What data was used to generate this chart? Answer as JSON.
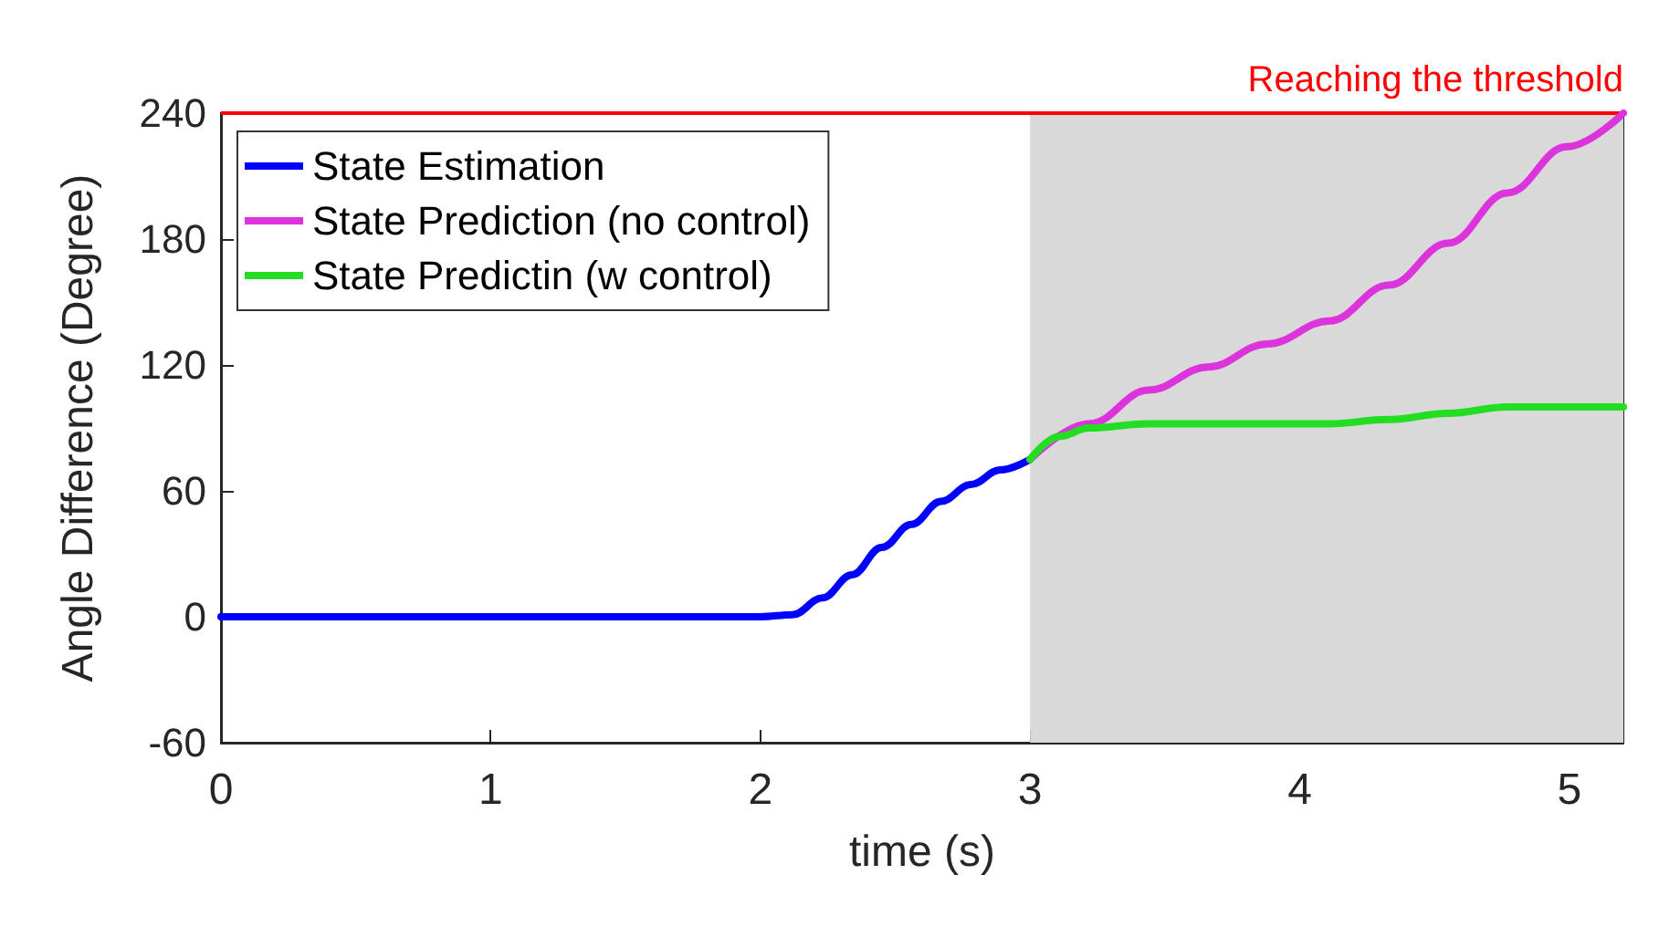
{
  "chart_data": {
    "type": "line",
    "xlabel": "time (s)",
    "ylabel": "Angle Difference (Degree)",
    "xlim": [
      0,
      5.2
    ],
    "xticks": [
      0,
      1,
      2,
      3,
      4,
      5
    ],
    "ylim": [
      -60,
      240
    ],
    "yticks": [
      -60,
      0,
      60,
      120,
      180,
      240
    ],
    "grid": false,
    "legend": "top left",
    "series": [
      {
        "name": "State Estimation",
        "color": "#0000ff",
        "x": [
          0,
          2,
          2.12,
          2.23,
          2.34,
          2.45,
          2.56,
          2.67,
          2.78,
          2.89,
          3
        ],
        "values": [
          0,
          0,
          1,
          9,
          20,
          33,
          44,
          55,
          63,
          70,
          75
        ]
      },
      {
        "name": "State Prediction (no control)",
        "color": "#dd33dd",
        "x": [
          3,
          3.22,
          3.44,
          3.66,
          3.88,
          4.11,
          4.33,
          4.55,
          4.77,
          4.99,
          5.2
        ],
        "values": [
          75,
          92,
          108,
          119,
          130,
          141,
          158,
          178,
          202,
          224,
          240
        ]
      },
      {
        "name": "State Predictin (w control)",
        "color": "#22dd22",
        "x": [
          3,
          3.11,
          3.22,
          3.44,
          3.66,
          3.88,
          4.11,
          4.33,
          4.55,
          4.77,
          4.99,
          5.2
        ],
        "values": [
          75,
          86,
          90,
          92,
          92,
          92,
          92,
          94,
          97,
          100,
          100,
          100
        ]
      }
    ],
    "ref_lines": [
      {
        "axis": "y",
        "value": 240,
        "label": "Reaching the threshold",
        "color": "#ff0000"
      }
    ],
    "bands": [
      {
        "axis": "x",
        "from": 3,
        "to": 5.2,
        "color": "#d9d9d9"
      }
    ]
  }
}
